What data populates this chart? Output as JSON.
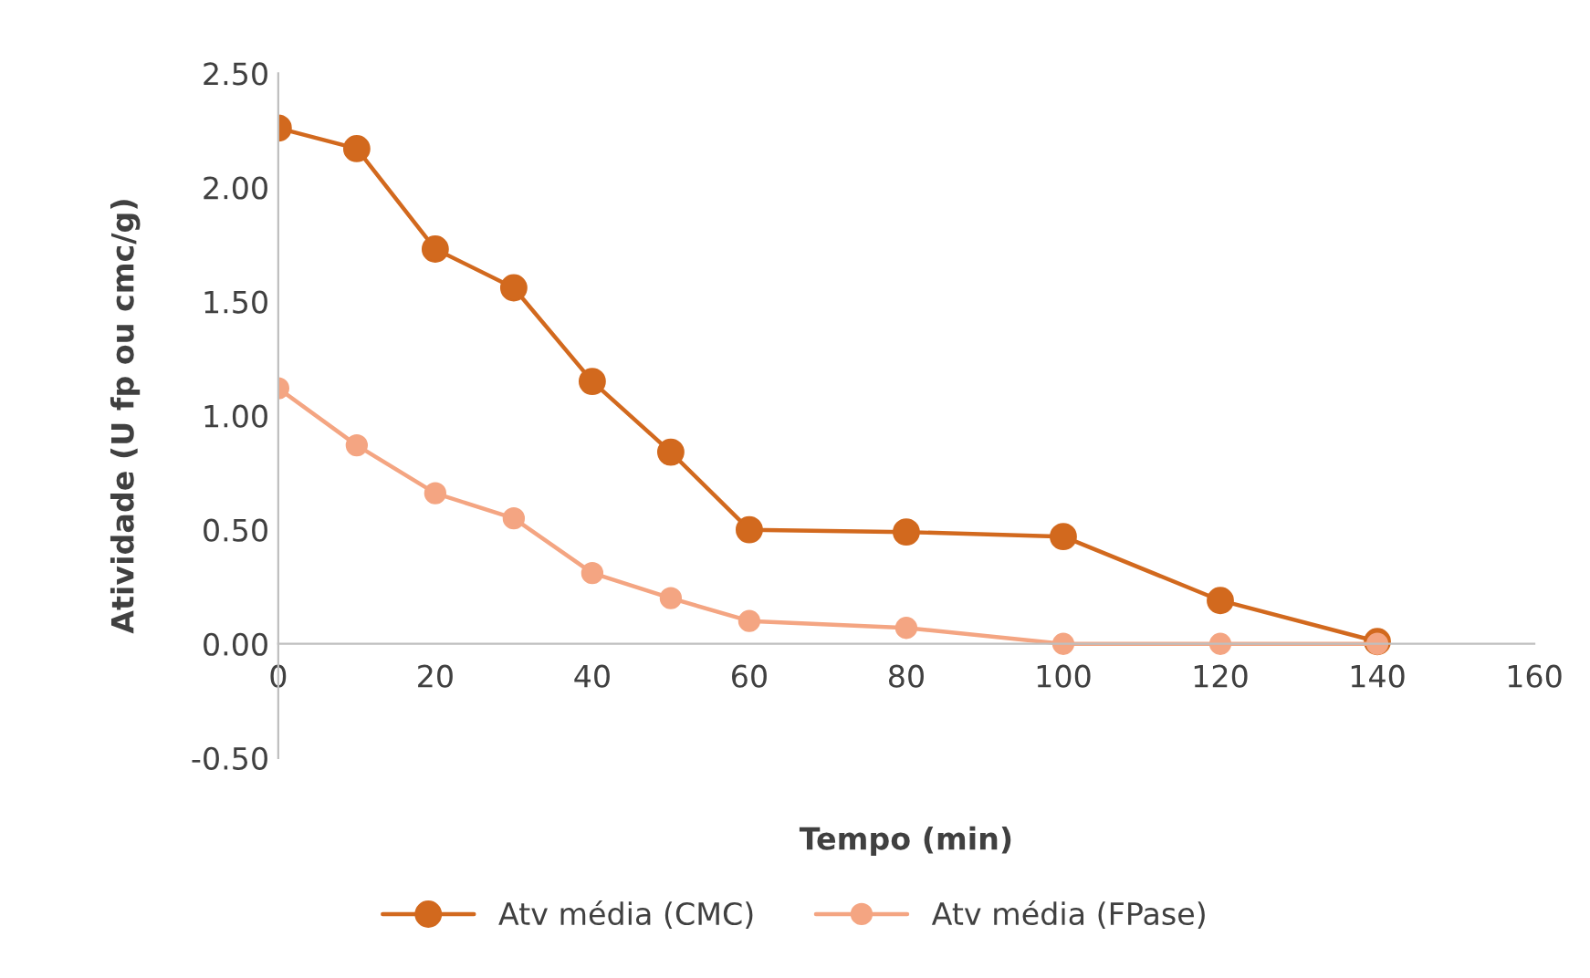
{
  "chart_data": {
    "type": "line",
    "xlabel": "Tempo (min)",
    "ylabel": "Atividade (U fp ou cmc/g)",
    "x": [
      0,
      10,
      20,
      30,
      40,
      50,
      60,
      80,
      100,
      120,
      140
    ],
    "series": [
      {
        "name": "Atv média (CMC)",
        "color": "#d2691e",
        "values": [
          2.26,
          2.17,
          1.73,
          1.56,
          1.15,
          0.84,
          0.5,
          0.49,
          0.47,
          0.19,
          0.01
        ]
      },
      {
        "name": "Atv média (FPase)",
        "color": "#f4a582",
        "values": [
          1.12,
          0.87,
          0.66,
          0.55,
          0.31,
          0.2,
          0.1,
          0.07,
          0.0,
          0.0,
          0.0
        ]
      }
    ],
    "xlim": [
      0,
      160
    ],
    "xticks": [
      0,
      20,
      40,
      60,
      80,
      100,
      120,
      140,
      160
    ],
    "ylim": [
      -0.5,
      2.5
    ],
    "yticks": [
      {
        "value": -0.5,
        "label": "-0.50"
      },
      {
        "value": 0,
        "label": "0.00"
      },
      {
        "value": 0.5,
        "label": "0.50"
      },
      {
        "value": 1,
        "label": "1.00"
      },
      {
        "value": 1.5,
        "label": "1.50"
      },
      {
        "value": 2,
        "label": "2.00"
      },
      {
        "value": 2.5,
        "label": "2.50"
      }
    ],
    "grid": false,
    "legend": "bottom",
    "marker": "circle",
    "line_style": "solid"
  }
}
